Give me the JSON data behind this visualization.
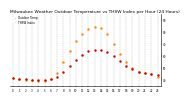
{
  "title": "Milwaukee Weather Outdoor Temperature vs THSW Index per Hour (24 Hours)",
  "title_fontsize": 3.2,
  "background_color": "#ffffff",
  "grid_color": "#888888",
  "ylim": [
    35,
    95
  ],
  "y_ticks": [
    40,
    50,
    60,
    70,
    80,
    90
  ],
  "y_tick_labels": [
    "40",
    "50",
    "60",
    "70",
    "80",
    "90"
  ],
  "temp_hours": [
    0,
    1,
    2,
    3,
    4,
    5,
    6,
    7,
    8,
    9,
    10,
    11,
    12,
    13,
    14,
    15,
    16,
    17,
    18,
    19,
    20,
    21,
    22,
    23
  ],
  "temp_values": [
    42,
    41,
    41,
    40,
    40,
    40,
    41,
    43,
    47,
    52,
    57,
    61,
    64,
    65,
    65,
    63,
    60,
    56,
    52,
    49,
    47,
    46,
    45,
    44
  ],
  "thsw_hours": [
    0,
    1,
    2,
    3,
    4,
    5,
    6,
    7,
    8,
    9,
    10,
    11,
    12,
    13,
    14,
    15,
    16,
    17,
    18,
    19,
    20,
    21,
    22,
    23
  ],
  "thsw_values": [
    42,
    41,
    40,
    40,
    39,
    39,
    41,
    46,
    55,
    64,
    72,
    78,
    82,
    84,
    83,
    78,
    70,
    62,
    55,
    50,
    47,
    46,
    45,
    43
  ],
  "temp_color": "#cc0000",
  "thsw_color": "#ff8800",
  "dot_size": 3,
  "xlim": [
    -0.5,
    23.5
  ],
  "x_ticks": [
    0,
    1,
    2,
    3,
    4,
    5,
    6,
    7,
    8,
    9,
    10,
    11,
    12,
    13,
    14,
    15,
    16,
    17,
    18,
    19,
    20,
    21,
    22,
    23
  ],
  "x_tick_labels": [
    "0",
    "1",
    "2",
    "3",
    "4",
    "5",
    "6",
    "7",
    "8",
    "9",
    "10",
    "11",
    "12",
    "13",
    "14",
    "15",
    "16",
    "17",
    "18",
    "19",
    "20",
    "21",
    "22",
    "23"
  ],
  "vgrid_positions": [
    0,
    1,
    2,
    3,
    4,
    5,
    6,
    7,
    8,
    9,
    10,
    11,
    12,
    13,
    14,
    15,
    16,
    17,
    18,
    19,
    20,
    21,
    22,
    23
  ],
  "legend_temp_label": "Outdoor Temp",
  "legend_thsw_label": "THSW Index"
}
